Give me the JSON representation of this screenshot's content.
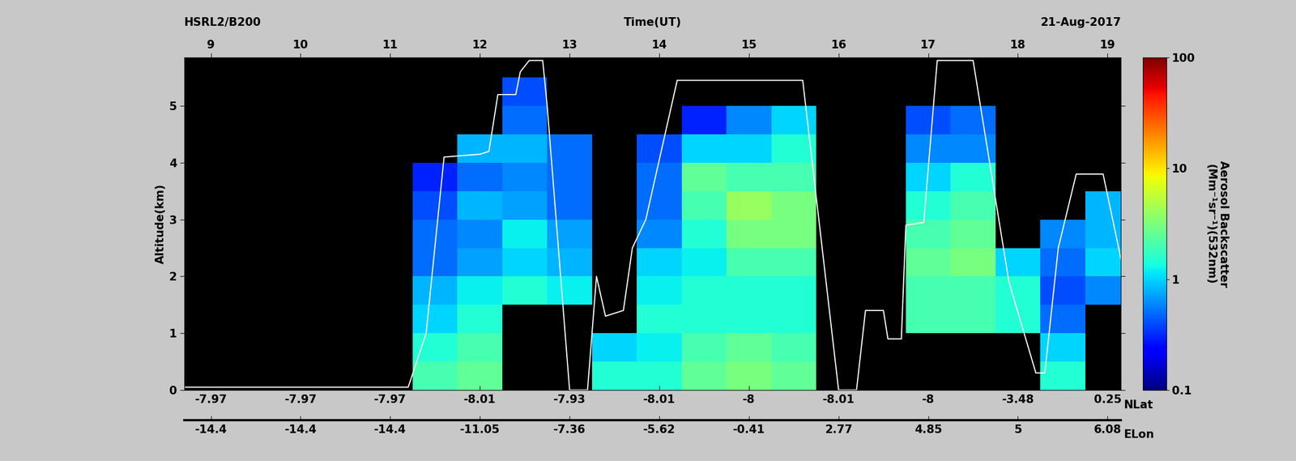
{
  "chart_data": {
    "type": "heatmap",
    "instrument": "HSRL2/B200",
    "date": "21-Aug-2017",
    "x_label": "Time(UT)",
    "y_label": "Altitude(km)",
    "xlim": [
      8.7,
      19.15
    ],
    "xticks": [
      9,
      10,
      11,
      12,
      13,
      14,
      15,
      16,
      17,
      18,
      19
    ],
    "ylim": [
      0,
      5.85
    ],
    "yticks": [
      0,
      1,
      2,
      3,
      4,
      5
    ],
    "lat_label": "NLat",
    "lat_ticks": [
      {
        "value": 9,
        "label": "-7.97"
      },
      {
        "value": 10,
        "label": "-7.97"
      },
      {
        "value": 11,
        "label": "-7.97"
      },
      {
        "value": 12,
        "label": "-8.01"
      },
      {
        "value": 13,
        "label": "-7.93"
      },
      {
        "value": 14,
        "label": "-8.01"
      },
      {
        "value": 15,
        "label": "-8"
      },
      {
        "value": 16,
        "label": "-8.01"
      },
      {
        "value": 17,
        "label": "-8"
      },
      {
        "value": 18,
        "label": "-3.48"
      },
      {
        "value": 19,
        "label": "0.25"
      }
    ],
    "lon_label": "ELon",
    "lon_ticks": [
      {
        "value": 9,
        "label": "-14.4"
      },
      {
        "value": 10,
        "label": "-14.4"
      },
      {
        "value": 11,
        "label": "-14.4"
      },
      {
        "value": 12,
        "label": "-11.05"
      },
      {
        "value": 13,
        "label": "-7.36"
      },
      {
        "value": 14,
        "label": "-5.62"
      },
      {
        "value": 15,
        "label": "-0.41"
      },
      {
        "value": 16,
        "label": "2.77"
      },
      {
        "value": 17,
        "label": "4.85"
      },
      {
        "value": 18,
        "label": "5"
      },
      {
        "value": 19,
        "label": "6.08"
      }
    ],
    "x_edges": [
      8.75,
      9.25,
      9.75,
      10.25,
      10.75,
      11.25,
      11.75,
      12.25,
      12.75,
      13.25,
      13.75,
      14.25,
      14.75,
      15.25,
      15.75,
      16.25,
      16.75,
      17.25,
      17.75,
      18.25,
      18.75,
      19.25
    ],
    "y_edges": [
      0,
      0.5,
      1,
      1.5,
      2,
      2.5,
      3,
      3.5,
      4,
      4.5,
      5,
      5.5,
      6
    ],
    "cells": [
      [
        null,
        null,
        null,
        null,
        null,
        2,
        2.5,
        null,
        null,
        1.5,
        1.5,
        2.5,
        3,
        2.5,
        null,
        null,
        null,
        null,
        null,
        1.5,
        null
      ],
      [
        null,
        null,
        null,
        null,
        null,
        1.5,
        2,
        null,
        null,
        1,
        1.2,
        2,
        2.5,
        2,
        null,
        null,
        null,
        null,
        null,
        1,
        null
      ],
      [
        null,
        null,
        null,
        null,
        null,
        1,
        1.5,
        null,
        null,
        null,
        1.5,
        1.5,
        1.5,
        1.5,
        null,
        null,
        2,
        2,
        1.5,
        0.5,
        null
      ],
      [
        null,
        null,
        null,
        null,
        null,
        0.8,
        1.2,
        1.5,
        1.2,
        null,
        1.2,
        1.5,
        1.5,
        1.5,
        null,
        null,
        2,
        2,
        1.5,
        0.4,
        0.6
      ],
      [
        null,
        null,
        null,
        null,
        null,
        0.5,
        0.7,
        1,
        0.8,
        null,
        1,
        1.2,
        2,
        2,
        null,
        null,
        2.5,
        3,
        1,
        0.5,
        1
      ],
      [
        null,
        null,
        null,
        null,
        null,
        0.5,
        0.6,
        1.2,
        0.7,
        null,
        0.6,
        1.5,
        3,
        3,
        null,
        null,
        2,
        2.5,
        null,
        0.6,
        0.8
      ],
      [
        null,
        null,
        null,
        null,
        null,
        0.4,
        0.8,
        0.7,
        0.5,
        null,
        0.5,
        2,
        4,
        3,
        null,
        null,
        1.5,
        2,
        null,
        null,
        0.8
      ],
      [
        null,
        null,
        null,
        null,
        null,
        0.3,
        0.5,
        0.6,
        0.5,
        null,
        0.5,
        2.5,
        2,
        2,
        null,
        null,
        1,
        1.5,
        null,
        null,
        null
      ],
      [
        null,
        null,
        null,
        null,
        null,
        null,
        0.8,
        0.8,
        0.5,
        null,
        0.4,
        1,
        1,
        1.5,
        null,
        null,
        0.6,
        0.6,
        null,
        null,
        null
      ],
      [
        null,
        null,
        null,
        null,
        null,
        null,
        null,
        0.5,
        null,
        null,
        null,
        0.3,
        0.6,
        1,
        null,
        null,
        0.4,
        0.5,
        null,
        null,
        null
      ],
      [
        null,
        null,
        null,
        null,
        null,
        null,
        null,
        0.4,
        null,
        null,
        null,
        null,
        null,
        null,
        null,
        null,
        null,
        null,
        null,
        null,
        null
      ],
      [
        null,
        null,
        null,
        null,
        null,
        null,
        null,
        null,
        null,
        null,
        null,
        null,
        null,
        null,
        null,
        null,
        null,
        null,
        null,
        null,
        null
      ]
    ],
    "colorbar": {
      "label": "Aerosol Backscatter\n(Mm⁻¹sr⁻¹)(532nm)",
      "log": true,
      "lim": [
        0.1,
        100
      ],
      "ticks": [
        0.1,
        1,
        10,
        100
      ]
    },
    "flight_altitude": {
      "color": "#ffffff",
      "x": [
        8.7,
        11.2,
        11.4,
        11.6,
        12.0,
        12.1,
        12.2,
        12.4,
        12.45,
        12.55,
        12.7,
        12.75,
        13.0,
        13.2,
        13.3,
        13.4,
        13.6,
        13.7,
        13.85,
        14.2,
        15.6,
        16.0,
        16.2,
        16.3,
        16.5,
        16.55,
        16.7,
        16.75,
        16.95,
        17.1,
        17.5,
        17.9,
        18.2,
        18.3,
        18.45,
        18.65,
        18.95,
        19.15
      ],
      "y": [
        0.05,
        0.05,
        1.0,
        4.1,
        4.15,
        4.2,
        5.2,
        5.2,
        5.6,
        5.8,
        5.8,
        5.0,
        0.0,
        0.0,
        2.0,
        1.3,
        1.4,
        2.5,
        3.0,
        5.45,
        5.45,
        0.0,
        0.0,
        1.4,
        1.4,
        0.9,
        0.9,
        2.9,
        2.95,
        5.8,
        5.8,
        1.9,
        0.3,
        0.3,
        2.5,
        3.8,
        3.8,
        2.3
      ]
    }
  }
}
